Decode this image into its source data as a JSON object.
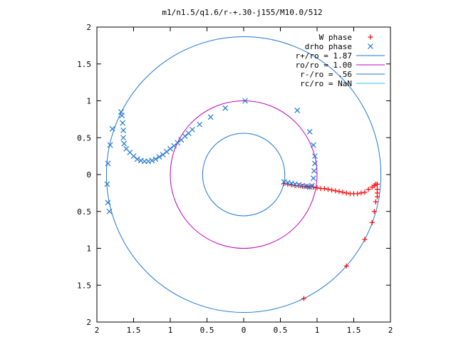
{
  "chart_data": {
    "type": "scatter",
    "title": "m1/n1.5/q1.6/r-+.30-j155/M10.0/512",
    "xlabel": "",
    "ylabel": "",
    "xlim": [
      -2,
      2
    ],
    "ylim": [
      -2,
      2
    ],
    "x_ticks": [
      -2,
      -1.5,
      -1,
      -0.5,
      0,
      0.5,
      1,
      1.5,
      2
    ],
    "y_ticks": [
      -2,
      -1.5,
      -1,
      -0.5,
      0,
      0.5,
      1,
      1.5,
      2
    ],
    "x_tick_labels": [
      "2",
      "1.5",
      "1",
      "0.5",
      "0",
      "0.5",
      "1",
      "1.5",
      "2"
    ],
    "y_tick_labels": [
      "2",
      "1.5",
      "1",
      "0.5",
      "0",
      "0.5",
      "1",
      "1.5",
      "2"
    ],
    "grid": false,
    "legend_position": "top-right",
    "series": [
      {
        "name": "W phase",
        "marker": "plus",
        "color": "#ff0000",
        "points": [
          [
            0.55,
            -0.12
          ],
          [
            0.6,
            -0.13
          ],
          [
            0.65,
            -0.14
          ],
          [
            0.7,
            -0.15
          ],
          [
            0.75,
            -0.15
          ],
          [
            0.8,
            -0.16
          ],
          [
            0.85,
            -0.16
          ],
          [
            0.9,
            -0.17
          ],
          [
            0.95,
            -0.17
          ],
          [
            1.0,
            -0.18
          ],
          [
            1.05,
            -0.19
          ],
          [
            1.1,
            -0.19
          ],
          [
            1.15,
            -0.2
          ],
          [
            1.2,
            -0.21
          ],
          [
            1.25,
            -0.22
          ],
          [
            1.3,
            -0.23
          ],
          [
            1.35,
            -0.24
          ],
          [
            1.4,
            -0.25
          ],
          [
            1.45,
            -0.26
          ],
          [
            1.5,
            -0.26
          ],
          [
            1.55,
            -0.26
          ],
          [
            1.6,
            -0.25
          ],
          [
            1.65,
            -0.24
          ],
          [
            1.7,
            -0.2
          ],
          [
            1.75,
            -0.17
          ],
          [
            1.78,
            -0.15
          ],
          [
            1.8,
            -0.13
          ],
          [
            1.82,
            -0.13
          ],
          [
            1.82,
            -0.2
          ],
          [
            1.82,
            -0.25
          ],
          [
            1.82,
            -0.3
          ],
          [
            1.8,
            -0.37
          ],
          [
            1.78,
            -0.5
          ],
          [
            1.75,
            -0.65
          ],
          [
            1.65,
            -0.88
          ],
          [
            1.4,
            -1.24
          ],
          [
            0.82,
            -1.68
          ]
        ]
      },
      {
        "name": "drho phase",
        "marker": "cross",
        "color": "#1f77d4",
        "points": [
          [
            0.55,
            -0.1
          ],
          [
            0.6,
            -0.11
          ],
          [
            0.65,
            -0.12
          ],
          [
            0.7,
            -0.13
          ],
          [
            0.75,
            -0.14
          ],
          [
            0.8,
            -0.15
          ],
          [
            0.85,
            -0.16
          ],
          [
            0.9,
            -0.17
          ],
          [
            0.93,
            -0.15
          ],
          [
            0.95,
            -0.05
          ],
          [
            0.96,
            0.05
          ],
          [
            0.97,
            0.15
          ],
          [
            0.97,
            0.25
          ],
          [
            0.95,
            0.4
          ],
          [
            0.9,
            0.58
          ],
          [
            0.73,
            0.87
          ],
          [
            0.02,
            1.0
          ],
          [
            -1.67,
            0.85
          ],
          [
            -1.66,
            0.8
          ],
          [
            -1.65,
            0.7
          ],
          [
            -1.64,
            0.6
          ],
          [
            -1.64,
            0.5
          ],
          [
            -1.63,
            0.42
          ],
          [
            -1.6,
            0.35
          ],
          [
            -1.55,
            0.3
          ],
          [
            -1.5,
            0.25
          ],
          [
            -1.45,
            0.21
          ],
          [
            -1.4,
            0.19
          ],
          [
            -1.35,
            0.18
          ],
          [
            -1.3,
            0.18
          ],
          [
            -1.25,
            0.19
          ],
          [
            -1.2,
            0.21
          ],
          [
            -1.15,
            0.24
          ],
          [
            -1.1,
            0.27
          ],
          [
            -1.05,
            0.31
          ],
          [
            -1.0,
            0.35
          ],
          [
            -0.95,
            0.39
          ],
          [
            -0.9,
            0.43
          ],
          [
            -0.85,
            0.47
          ],
          [
            -0.8,
            0.52
          ],
          [
            -0.75,
            0.56
          ],
          [
            -0.7,
            0.61
          ],
          [
            -0.6,
            0.68
          ],
          [
            -0.45,
            0.78
          ],
          [
            -0.25,
            0.9
          ],
          [
            -1.79,
            0.62
          ],
          [
            -1.82,
            0.4
          ],
          [
            -1.85,
            0.15
          ],
          [
            -1.86,
            -0.13
          ],
          [
            -1.85,
            -0.38
          ],
          [
            -1.83,
            -0.5
          ]
        ]
      }
    ],
    "circles": [
      {
        "name": "r+/ro = 1.87",
        "radius": 1.87,
        "color": "#1f77d4"
      },
      {
        "name": "ro/ro = 1.00",
        "radius": 1.0,
        "color": "#bf00bf"
      },
      {
        "name": "r-/ro = .56",
        "radius": 0.56,
        "color": "#1f77d4"
      },
      {
        "name": "rc/ro = NaN",
        "radius": null,
        "color": "#33c3e6"
      }
    ]
  }
}
